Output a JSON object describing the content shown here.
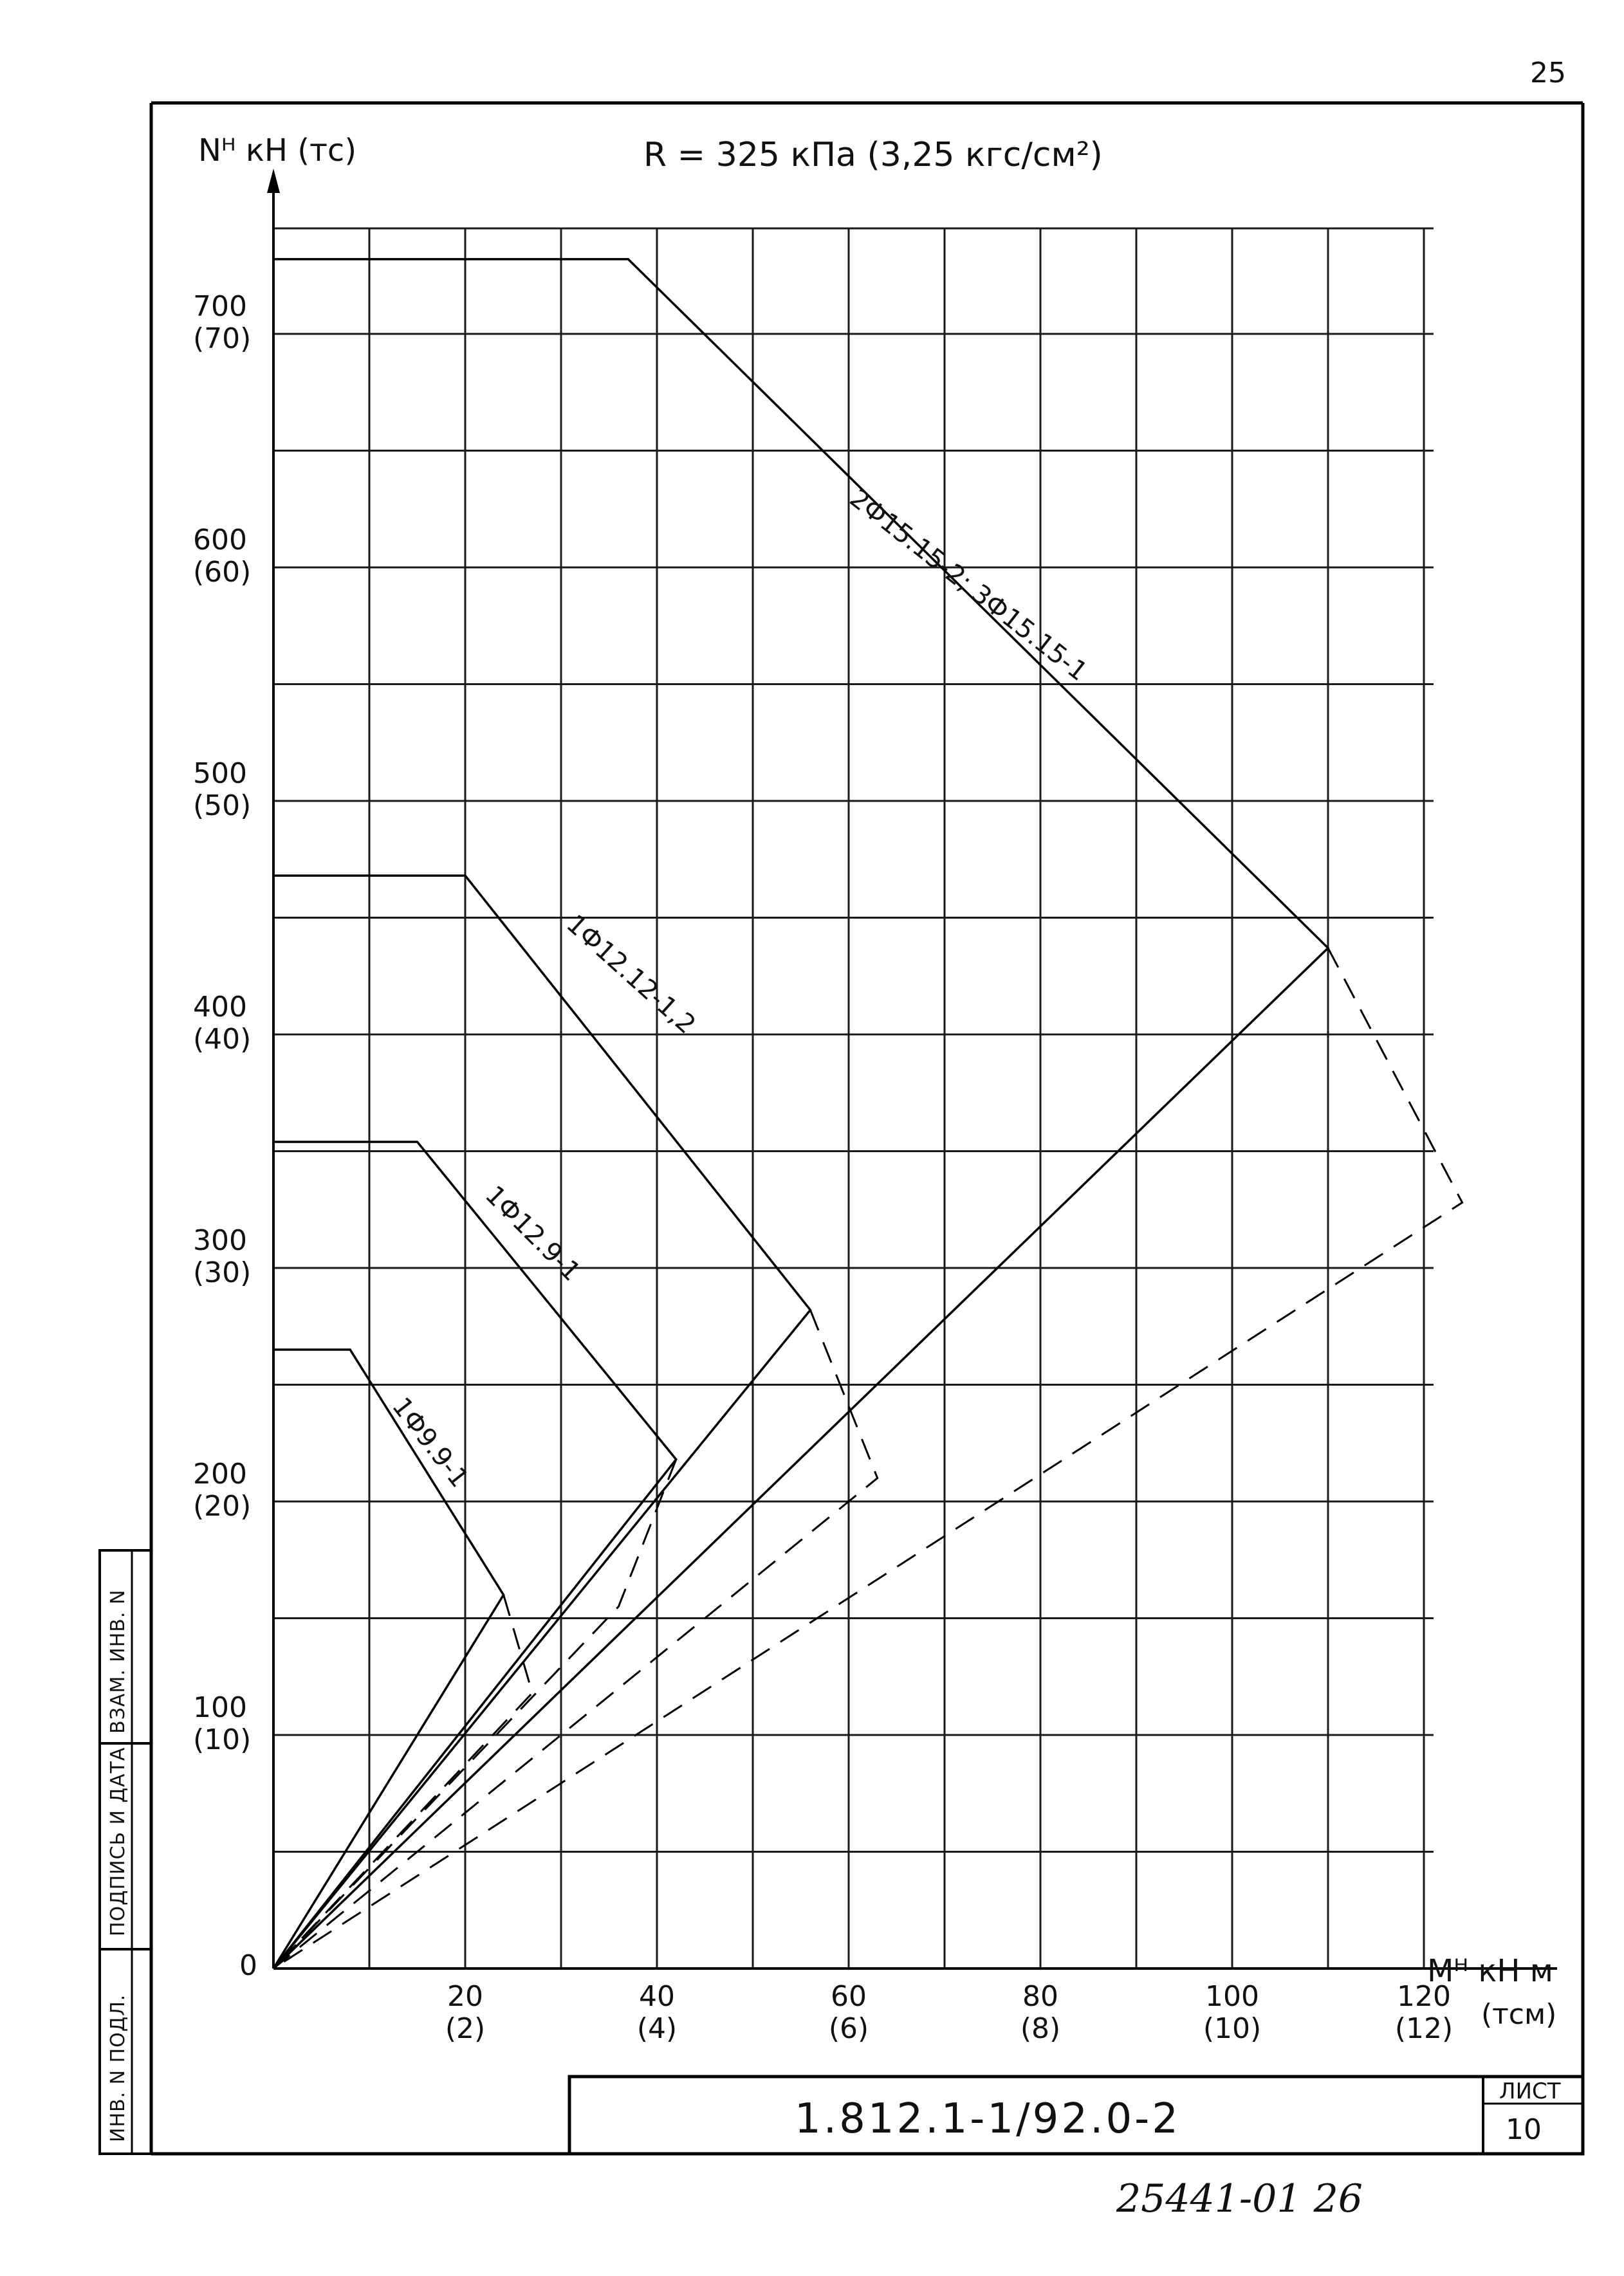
{
  "page": {
    "page_number": "25",
    "title": "R = 325 кПа (3,25 кгс/см²)",
    "doc_code": "1.812.1-1/92.0-2",
    "sheet_label": "ЛИСТ",
    "sheet_number": "10",
    "inventory_handwritten": "25441-01 26",
    "side_stamp": {
      "col1": "ИНВ. N ПОДЛ.",
      "col2": "ПОДПИСЬ И ДАТА",
      "col3": "ВЗАМ. ИНВ. N"
    }
  },
  "chart_data": {
    "type": "line",
    "ylabel": "Nᴴ кН (тс)",
    "xlabel": "Mᴴ кН м",
    "x_unit_alt": "(тсм)",
    "xlim": [
      0,
      130
    ],
    "ylim": [
      0,
      760
    ],
    "x_ticks": [
      {
        "value": 20,
        "label": "20",
        "alt": "(2)"
      },
      {
        "value": 40,
        "label": "40",
        "alt": "(4)"
      },
      {
        "value": 60,
        "label": "60",
        "alt": "(6)"
      },
      {
        "value": 80,
        "label": "80",
        "alt": "(8)"
      },
      {
        "value": 100,
        "label": "100",
        "alt": "(10)"
      },
      {
        "value": 120,
        "label": "120",
        "alt": "(12)"
      }
    ],
    "y_ticks": [
      {
        "value": 0,
        "label": "0",
        "alt": ""
      },
      {
        "value": 100,
        "label": "100",
        "alt": "(10)"
      },
      {
        "value": 200,
        "label": "200",
        "alt": "(20)"
      },
      {
        "value": 300,
        "label": "300",
        "alt": "(30)"
      },
      {
        "value": 400,
        "label": "400",
        "alt": "(40)"
      },
      {
        "value": 500,
        "label": "500",
        "alt": "(50)"
      },
      {
        "value": 600,
        "label": "600",
        "alt": "(60)"
      },
      {
        "value": 700,
        "label": "700",
        "alt": "(70)"
      }
    ],
    "grid": true,
    "series": [
      {
        "name": "2Ф15.15-2; 3Ф15.15-1",
        "solid": [
          [
            0,
            732
          ],
          [
            37,
            732
          ],
          [
            110,
            437
          ],
          [
            0,
            0
          ]
        ],
        "dashed": [
          [
            110,
            437
          ],
          [
            124,
            328
          ],
          [
            0,
            0
          ]
        ]
      },
      {
        "name": "1Ф12.12-1,2",
        "solid": [
          [
            0,
            468
          ],
          [
            20,
            468
          ],
          [
            56,
            282
          ],
          [
            0,
            0
          ]
        ],
        "dashed": [
          [
            56,
            282
          ],
          [
            63,
            210
          ],
          [
            0,
            0
          ]
        ]
      },
      {
        "name": "1Ф12.9-1",
        "solid": [
          [
            0,
            354
          ],
          [
            15,
            354
          ],
          [
            42,
            218
          ],
          [
            0,
            0
          ]
        ],
        "dashed": [
          [
            42,
            218
          ],
          [
            36,
            155
          ],
          [
            0,
            0
          ]
        ]
      },
      {
        "name": "1Ф9.9-1",
        "solid": [
          [
            0,
            265
          ],
          [
            8,
            265
          ],
          [
            24,
            160
          ],
          [
            0,
            0
          ]
        ],
        "dashed": [
          [
            24,
            160
          ],
          [
            27,
            118
          ],
          [
            0,
            0
          ]
        ]
      }
    ]
  }
}
